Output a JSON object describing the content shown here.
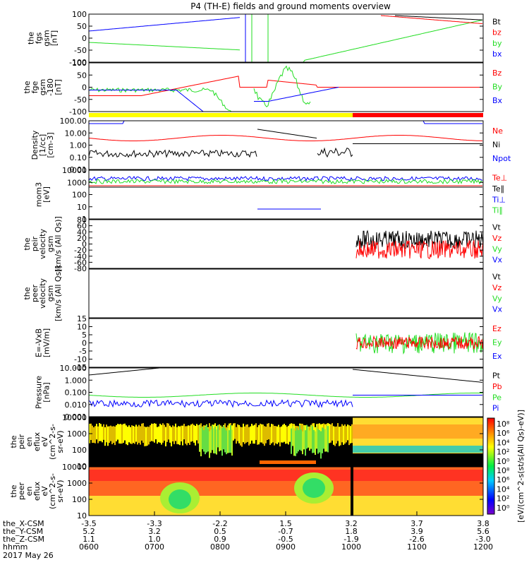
{
  "title": "P4 (TH-E) fields and ground moments overview",
  "colors": {
    "black": "#000000",
    "red": "#ff0000",
    "green": "#22dd22",
    "blue": "#0000ff",
    "yellow": "#ffff00"
  },
  "chart_data": [
    {
      "type": "line",
      "id": "fgs",
      "ylabel": [
        "the",
        "fgs",
        "gsm",
        "[nT]"
      ],
      "ylim": [
        -100,
        100
      ],
      "yticks": [
        "100",
        "50",
        "0",
        "-50",
        "-100"
      ],
      "series": [
        {
          "name": "Bt",
          "color": "black"
        },
        {
          "name": "bz",
          "color": "red"
        },
        {
          "name": "by",
          "color": "green"
        },
        {
          "name": "bx",
          "color": "blue"
        }
      ]
    },
    {
      "type": "line",
      "id": "fge",
      "ylabel": [
        "the",
        "fge",
        "gsm",
        "-180",
        "[nT]"
      ],
      "ylim": [
        -120,
        120
      ],
      "yticks": [
        "100",
        "50",
        "0",
        "-50",
        "-100"
      ],
      "series": [
        {
          "name": "Bz",
          "color": "red"
        },
        {
          "name": "By",
          "color": "green"
        },
        {
          "name": "Bx",
          "color": "blue"
        }
      ]
    },
    {
      "type": "line",
      "id": "density",
      "ylabel": [
        "Density",
        "[1/cc]",
        "[cm-3]"
      ],
      "log": true,
      "yticks": [
        "100.00",
        "10.00",
        "1.00",
        "0.10",
        "0.01"
      ],
      "series": [
        {
          "name": "Ne",
          "color": "red"
        },
        {
          "name": "Ni",
          "color": "black"
        },
        {
          "name": "Npot",
          "color": "blue"
        }
      ]
    },
    {
      "type": "line",
      "id": "temp",
      "ylabel": [
        "mom3",
        "[eV]"
      ],
      "log": true,
      "yticks": [
        "10000",
        "1000",
        "100",
        "10",
        "1"
      ],
      "series": [
        {
          "name": "Te⊥",
          "color": "red"
        },
        {
          "name": "Te∥",
          "color": "black"
        },
        {
          "name": "Ti⊥",
          "color": "blue"
        },
        {
          "name": "Ti∥",
          "color": "green"
        }
      ]
    },
    {
      "type": "line",
      "id": "peir",
      "ylabel": [
        "the",
        "peir",
        "velocity",
        "gsm",
        "[km/s (All Qs)]"
      ],
      "ylim": [
        -80,
        80
      ],
      "yticks": [
        "80",
        "60",
        "40",
        "20",
        "0",
        "-20",
        "-40",
        "-60",
        "-80"
      ],
      "series": [
        {
          "name": "Vt",
          "color": "black"
        },
        {
          "name": "Vz",
          "color": "red"
        },
        {
          "name": "Vy",
          "color": "green"
        },
        {
          "name": "Vx",
          "color": "blue"
        }
      ]
    },
    {
      "type": "line",
      "id": "peer",
      "ylabel": [
        "the",
        "peer",
        "velocity",
        "gsm",
        "[km/s (All Qs)]"
      ],
      "yticks": [],
      "series": [
        {
          "name": "Vt",
          "color": "black"
        },
        {
          "name": "Vz",
          "color": "red"
        },
        {
          "name": "Vy",
          "color": "green"
        },
        {
          "name": "Vx",
          "color": "blue"
        }
      ]
    },
    {
      "type": "line",
      "id": "efield",
      "ylabel": [
        "E=-VxB",
        "[mV/m]"
      ],
      "ylim": [
        -15,
        15
      ],
      "yticks": [
        "15",
        "10",
        "5",
        "0",
        "-5",
        "-10",
        "-15"
      ],
      "series": [
        {
          "name": "Ez",
          "color": "red"
        },
        {
          "name": "Ey",
          "color": "green"
        },
        {
          "name": "Ex",
          "color": "blue"
        }
      ]
    },
    {
      "type": "line",
      "id": "pressure",
      "ylabel": [
        "Pressure",
        "[nPa]"
      ],
      "log": true,
      "yticks": [
        "10.000",
        "1.000",
        "0.100",
        "0.010",
        "0.001"
      ],
      "series": [
        {
          "name": "Pt",
          "color": "black"
        },
        {
          "name": "Pb",
          "color": "red"
        },
        {
          "name": "Pe",
          "color": "green"
        },
        {
          "name": "Pi",
          "color": "blue"
        }
      ]
    },
    {
      "type": "heatmap",
      "id": "peir_en",
      "ylabel": [
        "the",
        "peir",
        "en",
        "eflux",
        "eV",
        "(cm^2-s-",
        "sr-eV)"
      ],
      "yticks": [
        "10000",
        "1000",
        "100",
        "10"
      ]
    },
    {
      "type": "heatmap",
      "id": "peer_en",
      "ylabel": [
        "the",
        "peer",
        "en",
        "eflux",
        "eV",
        "(cm^2-s-",
        "sr-eV)"
      ],
      "yticks": [
        "10000",
        "1000",
        "100",
        "10"
      ]
    }
  ],
  "colorbar": {
    "label": "[eV/(cm^2-s(st/s(All Qs)-eV)]",
    "ticks": [
      "10⁸",
      "10⁶",
      "10⁴",
      "10²",
      "10⁰",
      "10⁸",
      "10⁶",
      "10⁴",
      "10²",
      "10⁰"
    ]
  },
  "xaxis": {
    "rows": [
      {
        "label": "the_X-CSM",
        "values": [
          "-3.5",
          "-3.3",
          "-2.2",
          "1.5",
          "3.2",
          "3.7",
          "3.8"
        ]
      },
      {
        "label": "the_Y-CSM",
        "values": [
          "5.2",
          "3.2",
          "0.5",
          "-0.7",
          "1.8",
          "3.9",
          "5.6"
        ]
      },
      {
        "label": "the_Z-CSM",
        "values": [
          "1.1",
          "1.0",
          "0.9",
          "-0.5",
          "-1.9",
          "-2.6",
          "-3.0"
        ]
      },
      {
        "label": "hhmm",
        "values": [
          "0600",
          "0700",
          "0800",
          "0900",
          "1000",
          "1100",
          "1200"
        ]
      }
    ],
    "date": "2017 May 26"
  }
}
